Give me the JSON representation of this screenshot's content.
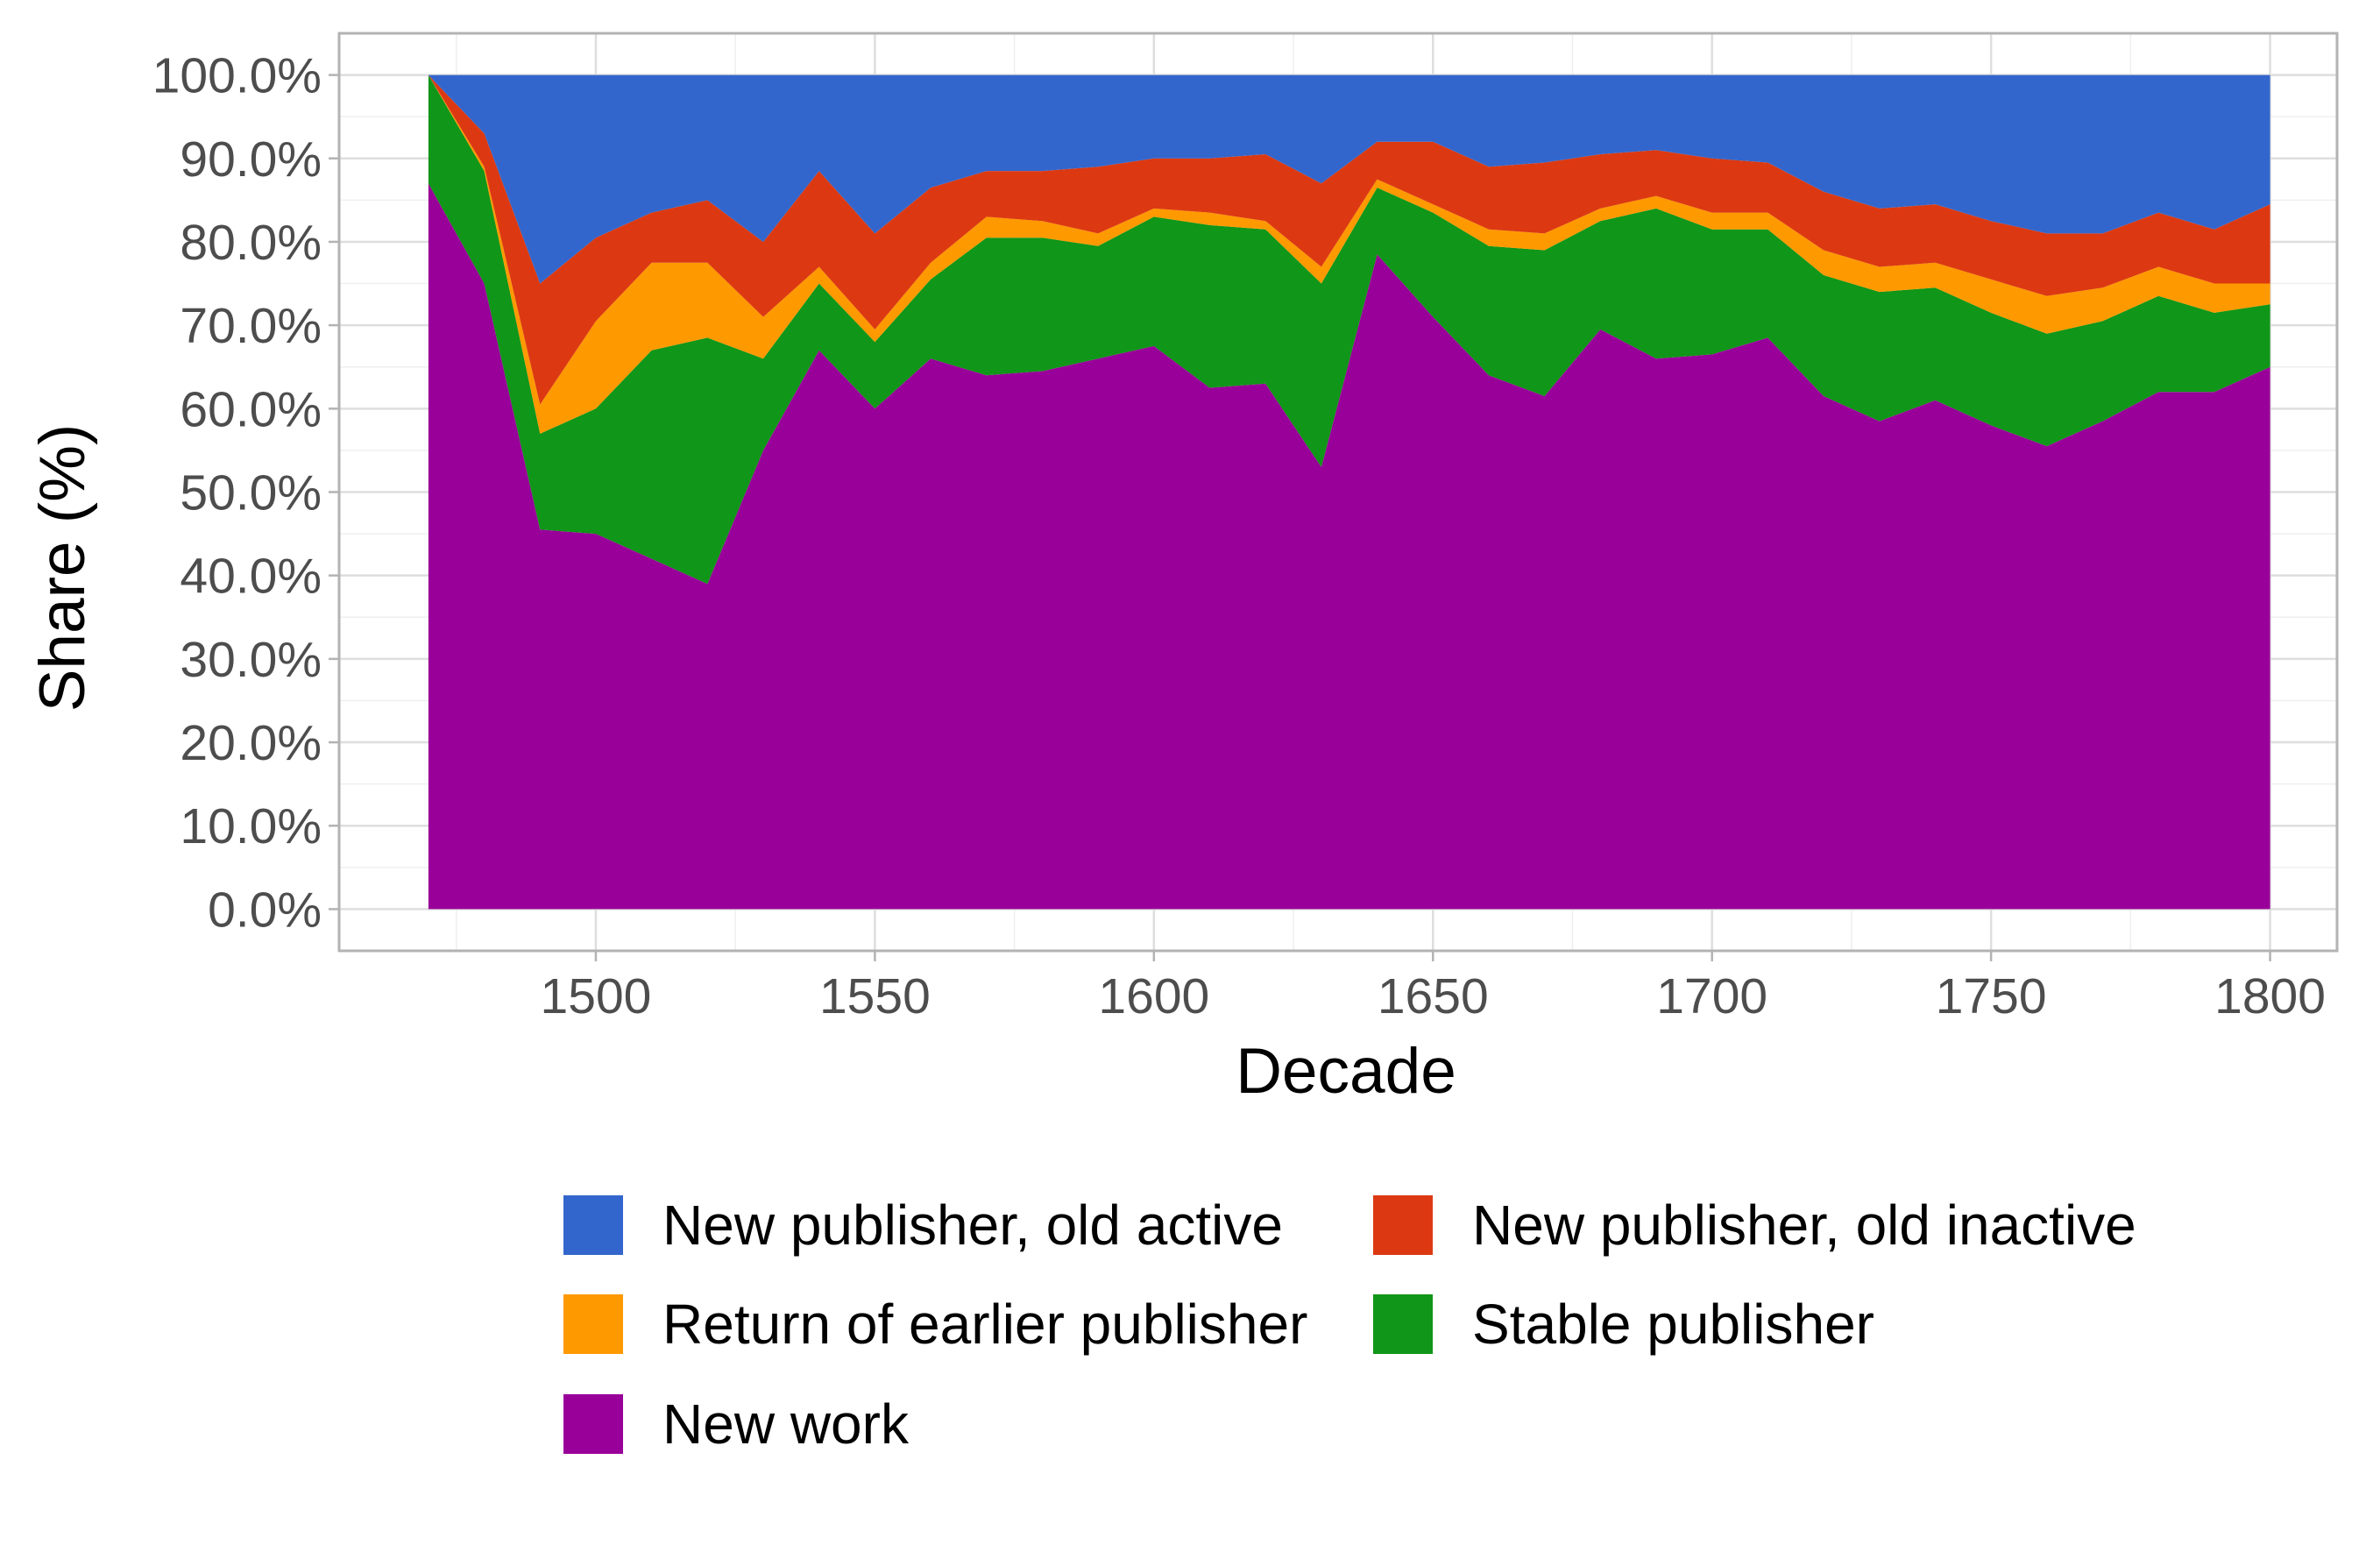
{
  "chart_data": {
    "type": "area",
    "stacked": true,
    "normalized_percent": true,
    "xlabel": "Decade",
    "ylabel": "Share (%)",
    "xlim": [
      1454,
      1812
    ],
    "ylim": [
      -5,
      105
    ],
    "x_ticks": [
      1500,
      1550,
      1600,
      1650,
      1700,
      1750,
      1800
    ],
    "y_ticks": [
      0,
      10,
      20,
      30,
      40,
      50,
      60,
      70,
      80,
      90,
      100
    ],
    "y_tick_labels": [
      "0.0%",
      "10.0%",
      "20.0%",
      "30.0%",
      "40.0%",
      "50.0%",
      "60.0%",
      "70.0%",
      "80.0%",
      "90.0%",
      "100.0%"
    ],
    "x_tick_labels": [
      "1500",
      "1550",
      "1600",
      "1650",
      "1700",
      "1750",
      "1800"
    ],
    "grid": true,
    "legend_position": "bottom",
    "x": [
      1470,
      1480,
      1490,
      1500,
      1510,
      1520,
      1530,
      1540,
      1550,
      1560,
      1570,
      1580,
      1590,
      1600,
      1610,
      1620,
      1630,
      1640,
      1650,
      1660,
      1670,
      1680,
      1690,
      1700,
      1710,
      1720,
      1730,
      1740,
      1750,
      1760,
      1770,
      1780,
      1790,
      1800
    ],
    "series": [
      {
        "name": "New work",
        "color": "#990099",
        "values": [
          87.0,
          75.0,
          45.5,
          45.0,
          42.0,
          39.0,
          55.0,
          67.0,
          60.0,
          66.0,
          64.0,
          64.5,
          66.0,
          67.5,
          62.5,
          63.0,
          53.0,
          78.5,
          71.0,
          64.0,
          61.5,
          69.5,
          66.0,
          66.5,
          68.5,
          61.5,
          58.5,
          61.0,
          58.0,
          55.5,
          58.5,
          62.0,
          62.0,
          65.0
        ]
      },
      {
        "name": "Stable publisher",
        "color": "#109618",
        "values": [
          13.0,
          13.5,
          11.5,
          15.0,
          25.0,
          29.5,
          11.0,
          8.0,
          8.0,
          9.5,
          16.5,
          16.0,
          13.5,
          15.5,
          19.5,
          18.5,
          22.0,
          8.0,
          12.5,
          15.5,
          17.5,
          13.0,
          18.0,
          15.0,
          13.0,
          14.5,
          15.5,
          13.5,
          13.5,
          13.5,
          12.0,
          11.5,
          9.5,
          7.5
        ]
      },
      {
        "name": "Return of earlier publisher",
        "color": "#ff9900",
        "values": [
          0.0,
          0.5,
          3.5,
          10.5,
          10.5,
          9.0,
          5.0,
          2.0,
          1.5,
          2.0,
          2.5,
          2.0,
          1.5,
          1.0,
          1.5,
          1.0,
          2.0,
          1.0,
          1.0,
          2.0,
          2.0,
          1.5,
          1.5,
          2.0,
          2.0,
          3.0,
          3.0,
          3.0,
          4.0,
          4.5,
          4.0,
          3.5,
          3.5,
          2.5
        ]
      },
      {
        "name": "New publisher, old inactive",
        "color": "#dc3912",
        "values": [
          0.0,
          4.0,
          14.5,
          10.0,
          6.0,
          7.5,
          9.0,
          11.5,
          11.5,
          9.0,
          5.5,
          6.0,
          8.0,
          6.0,
          6.5,
          8.0,
          10.0,
          4.5,
          7.5,
          7.5,
          8.5,
          6.5,
          5.5,
          6.5,
          6.0,
          7.0,
          7.0,
          7.0,
          7.0,
          7.5,
          6.5,
          6.5,
          6.5,
          9.5
        ]
      },
      {
        "name": "New publisher, old active",
        "color": "#3366cc",
        "values": [
          0.0,
          7.0,
          25.0,
          19.5,
          16.5,
          15.0,
          20.0,
          11.5,
          19.0,
          13.5,
          11.5,
          11.5,
          11.0,
          10.0,
          10.0,
          9.5,
          13.0,
          8.0,
          8.0,
          11.0,
          10.5,
          9.5,
          9.0,
          10.0,
          10.5,
          14.0,
          16.0,
          15.5,
          17.5,
          19.0,
          19.0,
          16.5,
          18.5,
          15.5
        ]
      }
    ],
    "legend": [
      {
        "name": "New publisher, old active",
        "color": "#3366cc"
      },
      {
        "name": "New publisher, old inactive",
        "color": "#dc3912"
      },
      {
        "name": "Return of earlier publisher",
        "color": "#ff9900"
      },
      {
        "name": "Stable publisher",
        "color": "#109618"
      },
      {
        "name": "New work",
        "color": "#990099"
      }
    ]
  }
}
